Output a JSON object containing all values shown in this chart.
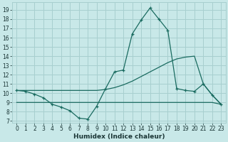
{
  "xlabel": "Humidex (Indice chaleur)",
  "background_color": "#c8e8e8",
  "grid_color": "#a8cfcf",
  "line_color": "#1a6b60",
  "xlim": [
    -0.5,
    23.5
  ],
  "ylim": [
    6.8,
    19.8
  ],
  "xticks": [
    0,
    1,
    2,
    3,
    4,
    5,
    6,
    7,
    8,
    9,
    10,
    11,
    12,
    13,
    14,
    15,
    16,
    17,
    18,
    19,
    20,
    21,
    22,
    23
  ],
  "yticks": [
    7,
    8,
    9,
    10,
    11,
    12,
    13,
    14,
    15,
    16,
    17,
    18,
    19
  ],
  "series1_x": [
    0,
    1,
    2,
    3,
    4,
    5,
    6,
    7,
    8,
    9,
    10,
    11,
    12,
    13,
    14,
    15,
    16,
    17,
    18,
    19,
    20,
    21,
    22,
    23
  ],
  "series1_y": [
    10.3,
    10.2,
    9.9,
    9.5,
    8.8,
    8.5,
    8.1,
    7.3,
    7.2,
    8.6,
    10.5,
    12.3,
    12.5,
    16.4,
    17.9,
    19.2,
    18.0,
    16.8,
    10.5,
    10.3,
    10.2,
    11.0,
    9.8,
    8.8
  ],
  "series2_x": [
    0,
    1,
    2,
    3,
    4,
    5,
    6,
    7,
    8,
    9,
    10,
    11,
    12,
    13,
    14,
    15,
    16,
    17,
    18,
    19,
    20,
    21,
    22,
    23
  ],
  "series2_y": [
    10.3,
    10.3,
    10.3,
    10.3,
    10.3,
    10.3,
    10.3,
    10.3,
    10.3,
    10.3,
    10.4,
    10.6,
    10.9,
    11.3,
    11.8,
    12.3,
    12.8,
    13.3,
    13.7,
    13.9,
    14.0,
    11.0,
    9.8,
    8.8
  ],
  "series3_x": [
    0,
    1,
    2,
    3,
    4,
    5,
    6,
    7,
    8,
    9,
    10,
    11,
    12,
    13,
    14,
    15,
    16,
    17,
    18,
    19,
    20,
    21,
    22,
    23
  ],
  "series3_y": [
    9.0,
    9.0,
    9.0,
    9.0,
    9.0,
    9.0,
    9.0,
    9.0,
    9.0,
    9.0,
    9.0,
    9.0,
    9.0,
    9.0,
    9.0,
    9.0,
    9.0,
    9.0,
    9.0,
    9.0,
    9.0,
    9.0,
    9.0,
    8.8
  ]
}
